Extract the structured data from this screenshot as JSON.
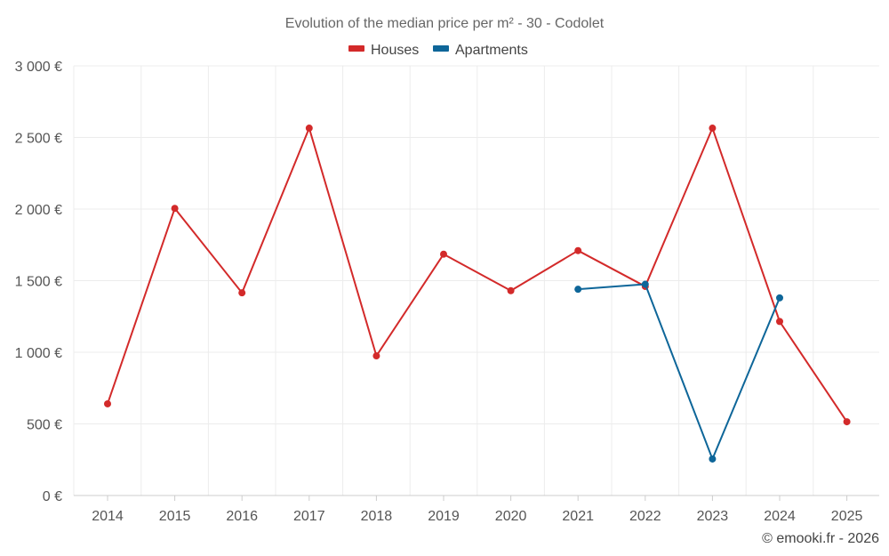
{
  "chart_data": {
    "type": "line",
    "title": "Evolution of the median price per m² - 30 - Codolet",
    "categories": [
      "2014",
      "2015",
      "2016",
      "2017",
      "2018",
      "2019",
      "2020",
      "2021",
      "2022",
      "2023",
      "2024",
      "2025"
    ],
    "ylim": [
      0,
      3000
    ],
    "yticks": [
      0,
      500,
      1000,
      1500,
      2000,
      2500,
      3000
    ],
    "ytick_labels": [
      "0 €",
      "500 €",
      "1 000 €",
      "1 500 €",
      "2 000 €",
      "2 500 €",
      "3 000 €"
    ],
    "grid": true,
    "legend_position": "top-center",
    "series": [
      {
        "name": "Houses",
        "color": "#d32a2a",
        "values": [
          640,
          2005,
          1415,
          2565,
          975,
          1685,
          1430,
          1710,
          1460,
          2565,
          1215,
          515
        ]
      },
      {
        "name": "Apartments",
        "color": "#0e6699",
        "values": [
          null,
          null,
          null,
          null,
          null,
          null,
          null,
          1440,
          1475,
          255,
          1380,
          null
        ]
      }
    ]
  },
  "credit": "© emooki.fr - 2026"
}
